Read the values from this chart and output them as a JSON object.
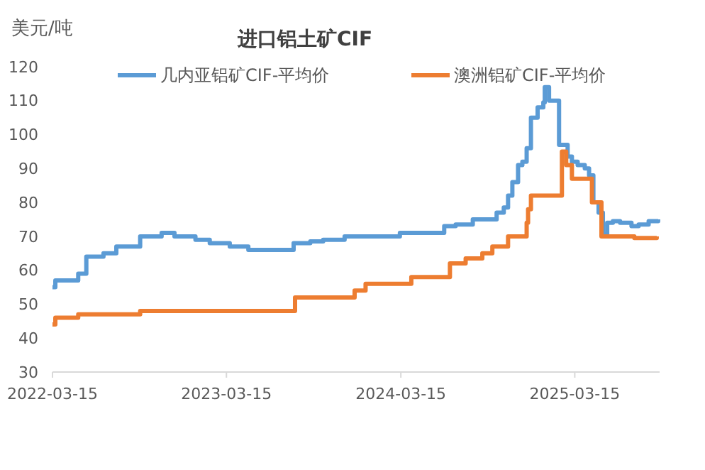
{
  "chart_data": {
    "type": "step",
    "title": "进口铝土矿CIF",
    "ylabel": "美元/吨",
    "legend": "top",
    "marker": "none",
    "line_style": "solid",
    "xlim": [
      "2022-03-15",
      "2025-09-09"
    ],
    "xticks": [
      "2022-03-15",
      "2023-03-15",
      "2024-03-15",
      "2025-03-15"
    ],
    "ylim": [
      30,
      120
    ],
    "yticks": [
      30,
      40,
      50,
      60,
      70,
      80,
      90,
      100,
      110,
      120
    ],
    "series": [
      {
        "name": "几内亚铝矿CIF-平均价",
        "color": "#5b9bd5",
        "x": [
          "2022-03-15",
          "2022-03-21",
          "2022-05-08",
          "2022-05-25",
          "2022-06-30",
          "2022-07-27",
          "2022-09-15",
          "2022-10-30",
          "2022-11-26",
          "2023-01-09",
          "2023-02-08",
          "2023-03-22",
          "2023-04-30",
          "2023-08-03",
          "2023-09-07",
          "2023-10-04",
          "2023-11-18",
          "2024-03-13",
          "2024-06-14",
          "2024-07-08",
          "2024-08-13",
          "2024-10-02",
          "2024-10-17",
          "2024-10-26",
          "2024-11-04",
          "2024-11-16",
          "2024-11-25",
          "2024-12-04",
          "2024-12-13",
          "2024-12-27",
          "2025-01-08",
          "2025-01-11",
          "2025-01-20",
          "2025-02-10",
          "2025-02-28",
          "2025-03-09",
          "2025-03-21",
          "2025-04-05",
          "2025-04-14",
          "2025-04-23",
          "2025-05-04",
          "2025-05-13",
          "2025-05-22",
          "2025-06-03",
          "2025-06-18",
          "2025-07-12",
          "2025-07-27",
          "2025-08-17",
          "2025-09-06"
        ],
        "values": [
          55,
          57,
          59,
          64,
          65,
          67,
          70,
          71,
          70,
          69,
          68,
          67,
          66,
          68,
          68.5,
          69,
          70,
          71,
          73,
          73.5,
          75,
          77,
          78.5,
          82,
          86,
          91,
          92,
          96,
          105,
          108,
          109.5,
          114,
          110,
          97,
          93.5,
          92,
          91,
          90,
          88,
          80,
          77,
          70.5,
          74,
          74.5,
          74,
          73,
          73.5,
          74.5,
          75
        ]
      },
      {
        "name": "澳洲铝矿CIF-平均价",
        "color": "#ed7d31",
        "x": [
          "2022-03-15",
          "2022-03-21",
          "2022-05-08",
          "2022-09-15",
          "2023-08-06",
          "2023-12-09",
          "2024-01-01",
          "2024-04-06",
          "2024-06-26",
          "2024-07-29",
          "2024-09-02",
          "2024-09-23",
          "2024-10-26",
          "2024-12-04",
          "2024-12-07",
          "2024-12-13",
          "2025-02-16",
          "2025-02-25",
          "2025-03-09",
          "2025-04-20",
          "2025-05-10",
          "2025-07-18",
          "2025-09-03"
        ],
        "values": [
          44,
          46,
          47,
          48,
          52,
          54,
          56,
          58,
          62,
          63.5,
          65,
          67,
          70,
          74,
          78,
          82,
          95,
          91,
          87,
          80,
          70,
          69.5,
          70
        ]
      }
    ]
  }
}
